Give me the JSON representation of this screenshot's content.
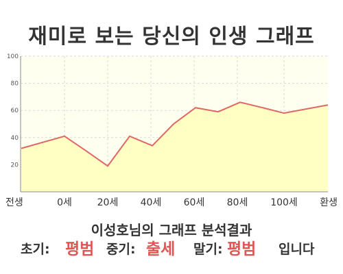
{
  "title": "재미로 보는 당신의 인생 그래프",
  "result_title": "이성호님의 그래프 분석결과",
  "summary": {
    "early_label": "초기:",
    "early_value": "평범",
    "middle_label": "중기:",
    "middle_value": "출세",
    "late_label": "말기:",
    "late_value": "평범",
    "ending": "입니다"
  },
  "colors": {
    "line": "#e06666",
    "fill": "#ffffc4",
    "plot_bg": "#fffff0",
    "grid": "#d9d9d9",
    "highlight": "#e05555"
  },
  "chart_data": {
    "type": "area",
    "title": "재미로 보는 당신의 인생 그래프",
    "xlabel": "",
    "ylabel": "",
    "ylim": [
      0,
      100
    ],
    "yticks": [
      20,
      40,
      60,
      80,
      100
    ],
    "x_tick_labels": [
      "전생",
      "0세",
      "20세",
      "40세",
      "60세",
      "80세",
      "100세",
      "환생"
    ],
    "grid": true,
    "series": [
      {
        "x": [
          "전생",
          "0세",
          "",
          "20세",
          "",
          "40세",
          "",
          "60세",
          "",
          "80세",
          "",
          "100세",
          "환생"
        ],
        "values": [
          32,
          41,
          30,
          19,
          41,
          34,
          50,
          62,
          59,
          66,
          62,
          58,
          64
        ]
      }
    ]
  }
}
